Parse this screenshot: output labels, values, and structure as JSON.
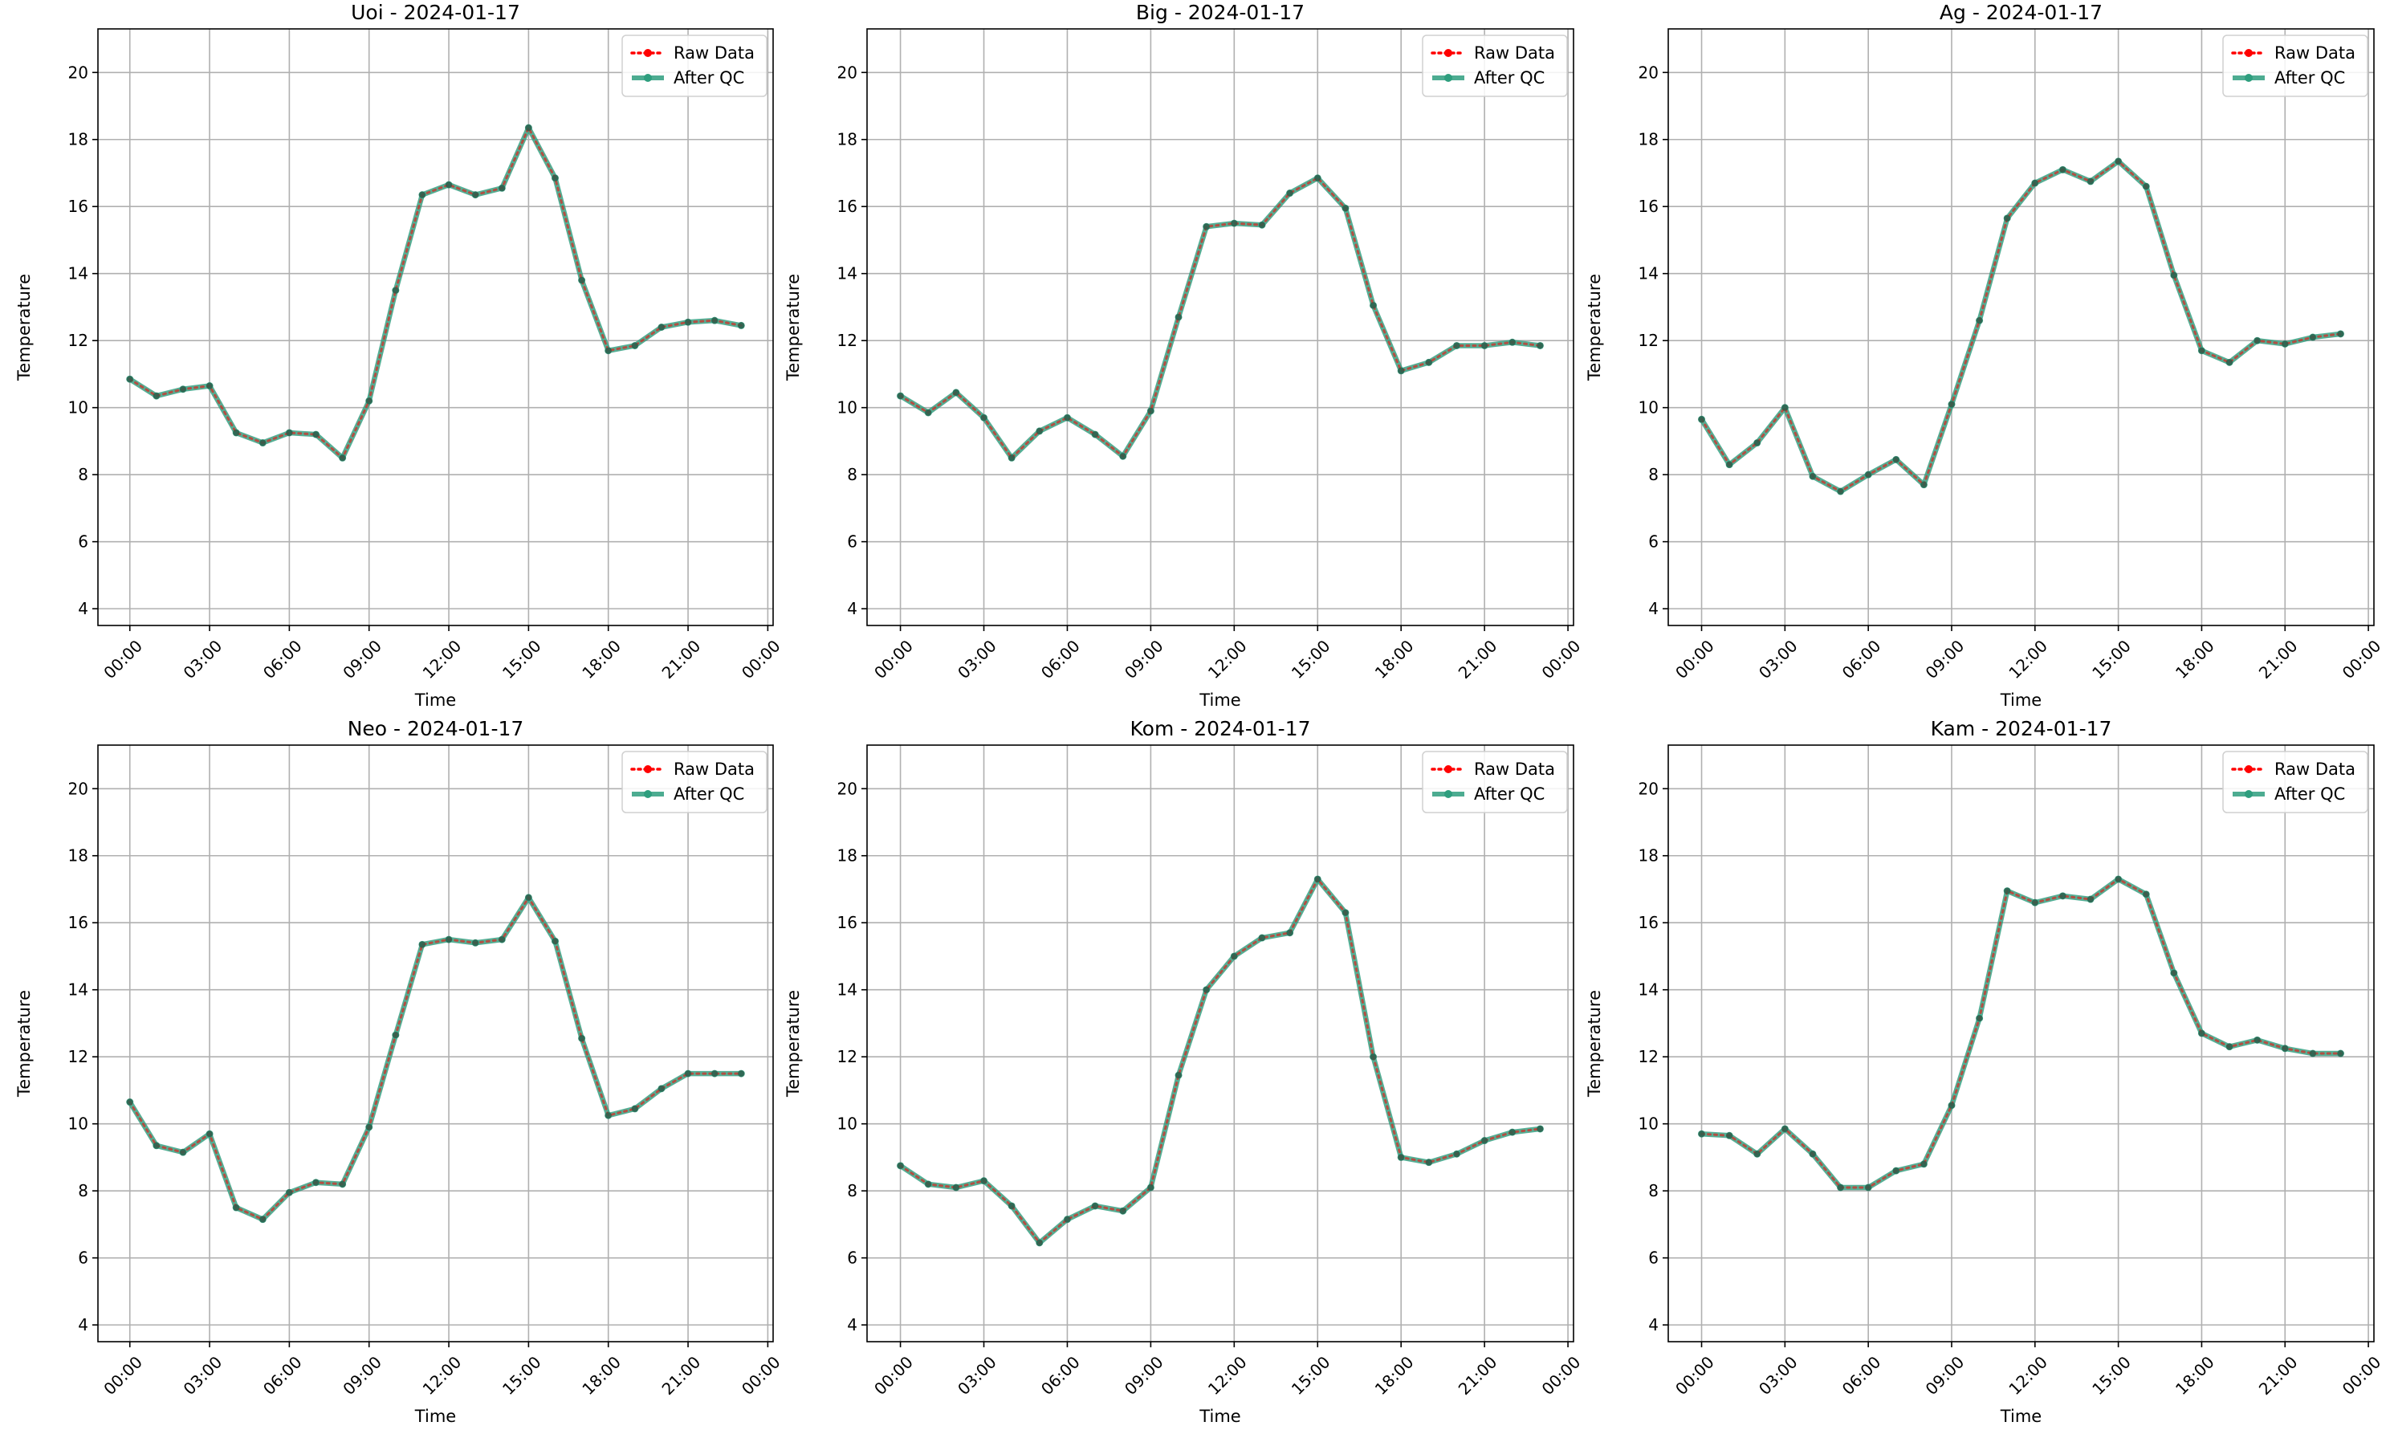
{
  "figure": {
    "raw_color": "#ff0000",
    "qc_color": "#2e9e7e",
    "grid_color": "#b0b0b0"
  },
  "chart_data": [
    {
      "type": "line",
      "title": "Uoi - 2024-01-17",
      "xlabel": "Time",
      "ylabel": "Temperature",
      "x_hours": [
        0,
        1,
        2,
        3,
        4,
        5,
        6,
        7,
        8,
        9,
        10,
        11,
        12,
        13,
        14,
        15,
        16,
        17,
        18,
        19,
        20,
        21,
        22,
        23
      ],
      "x_tick_labels": [
        "00:00",
        "03:00",
        "06:00",
        "09:00",
        "12:00",
        "15:00",
        "18:00",
        "21:00",
        "00:00"
      ],
      "x_tick_hours": [
        0,
        3,
        6,
        9,
        12,
        15,
        18,
        21,
        24
      ],
      "xlim": [
        -1.2,
        24.2
      ],
      "ylim": [
        3.5,
        21.3
      ],
      "y_ticks": [
        4,
        6,
        8,
        10,
        12,
        14,
        16,
        18,
        20
      ],
      "grid": true,
      "legend": "top-right",
      "series": [
        {
          "name": "Raw Data",
          "style": "dotted",
          "values": [
            10.85,
            10.35,
            10.55,
            10.65,
            9.25,
            8.95,
            9.25,
            9.2,
            8.5,
            10.2,
            13.5,
            16.35,
            16.65,
            16.35,
            16.55,
            18.35,
            16.85,
            13.8,
            11.7,
            11.85,
            12.4,
            12.55,
            12.6,
            12.45
          ]
        },
        {
          "name": "After QC",
          "style": "solid",
          "values": [
            10.85,
            10.35,
            10.55,
            10.65,
            9.25,
            8.95,
            9.25,
            9.2,
            8.5,
            10.2,
            13.5,
            16.35,
            16.65,
            16.35,
            16.55,
            18.35,
            16.85,
            13.8,
            11.7,
            11.85,
            12.4,
            12.55,
            12.6,
            12.45
          ]
        }
      ]
    },
    {
      "type": "line",
      "title": "Big - 2024-01-17",
      "xlabel": "Time",
      "ylabel": "Temperature",
      "x_hours": [
        0,
        1,
        2,
        3,
        4,
        5,
        6,
        7,
        8,
        9,
        10,
        11,
        12,
        13,
        14,
        15,
        16,
        17,
        18,
        19,
        20,
        21,
        22,
        23
      ],
      "x_tick_labels": [
        "00:00",
        "03:00",
        "06:00",
        "09:00",
        "12:00",
        "15:00",
        "18:00",
        "21:00",
        "00:00"
      ],
      "x_tick_hours": [
        0,
        3,
        6,
        9,
        12,
        15,
        18,
        21,
        24
      ],
      "xlim": [
        -1.2,
        24.2
      ],
      "ylim": [
        3.5,
        21.3
      ],
      "y_ticks": [
        4,
        6,
        8,
        10,
        12,
        14,
        16,
        18,
        20
      ],
      "grid": true,
      "legend": "top-right",
      "series": [
        {
          "name": "Raw Data",
          "style": "dotted",
          "values": [
            10.35,
            9.85,
            10.45,
            9.7,
            8.5,
            9.3,
            9.7,
            9.2,
            8.55,
            9.9,
            12.7,
            15.4,
            15.5,
            15.45,
            16.4,
            16.85,
            15.95,
            13.05,
            11.1,
            11.35,
            11.85,
            11.85,
            11.95,
            11.85
          ]
        },
        {
          "name": "After QC",
          "style": "solid",
          "values": [
            10.35,
            9.85,
            10.45,
            9.7,
            8.5,
            9.3,
            9.7,
            9.2,
            8.55,
            9.9,
            12.7,
            15.4,
            15.5,
            15.45,
            16.4,
            16.85,
            15.95,
            13.05,
            11.1,
            11.35,
            11.85,
            11.85,
            11.95,
            11.85
          ]
        }
      ]
    },
    {
      "type": "line",
      "title": "Ag - 2024-01-17",
      "xlabel": "Time",
      "ylabel": "Temperature",
      "x_hours": [
        0,
        1,
        2,
        3,
        4,
        5,
        6,
        7,
        8,
        9,
        10,
        11,
        12,
        13,
        14,
        15,
        16,
        17,
        18,
        19,
        20,
        21,
        22,
        23
      ],
      "x_tick_labels": [
        "00:00",
        "03:00",
        "06:00",
        "09:00",
        "12:00",
        "15:00",
        "18:00",
        "21:00",
        "00:00"
      ],
      "x_tick_hours": [
        0,
        3,
        6,
        9,
        12,
        15,
        18,
        21,
        24
      ],
      "xlim": [
        -1.2,
        24.2
      ],
      "ylim": [
        3.5,
        21.3
      ],
      "y_ticks": [
        4,
        6,
        8,
        10,
        12,
        14,
        16,
        18,
        20
      ],
      "grid": true,
      "legend": "top-right",
      "series": [
        {
          "name": "Raw Data",
          "style": "dotted",
          "values": [
            9.65,
            8.3,
            8.95,
            10.0,
            7.95,
            7.5,
            8.0,
            8.45,
            7.7,
            10.1,
            12.6,
            15.65,
            16.7,
            17.1,
            16.75,
            17.35,
            16.6,
            13.95,
            11.7,
            11.35,
            12.0,
            11.9,
            12.1,
            12.2
          ]
        },
        {
          "name": "After QC",
          "style": "solid",
          "values": [
            9.65,
            8.3,
            8.95,
            10.0,
            7.95,
            7.5,
            8.0,
            8.45,
            7.7,
            10.1,
            12.6,
            15.65,
            16.7,
            17.1,
            16.75,
            17.35,
            16.6,
            13.95,
            11.7,
            11.35,
            12.0,
            11.9,
            12.1,
            12.2
          ]
        }
      ]
    },
    {
      "type": "line",
      "title": "Neo - 2024-01-17",
      "xlabel": "Time",
      "ylabel": "Temperature",
      "x_hours": [
        0,
        1,
        2,
        3,
        4,
        5,
        6,
        7,
        8,
        9,
        10,
        11,
        12,
        13,
        14,
        15,
        16,
        17,
        18,
        19,
        20,
        21,
        22,
        23
      ],
      "x_tick_labels": [
        "00:00",
        "03:00",
        "06:00",
        "09:00",
        "12:00",
        "15:00",
        "18:00",
        "21:00",
        "00:00"
      ],
      "x_tick_hours": [
        0,
        3,
        6,
        9,
        12,
        15,
        18,
        21,
        24
      ],
      "xlim": [
        -1.2,
        24.2
      ],
      "ylim": [
        3.5,
        21.3
      ],
      "y_ticks": [
        4,
        6,
        8,
        10,
        12,
        14,
        16,
        18,
        20
      ],
      "grid": true,
      "legend": "top-right",
      "series": [
        {
          "name": "Raw Data",
          "style": "dotted",
          "values": [
            10.65,
            9.35,
            9.15,
            9.7,
            7.5,
            7.15,
            7.95,
            8.25,
            8.2,
            9.9,
            12.65,
            15.35,
            15.5,
            15.4,
            15.5,
            16.75,
            15.45,
            12.55,
            10.25,
            10.45,
            11.05,
            11.5,
            11.5,
            11.5
          ]
        },
        {
          "name": "After QC",
          "style": "solid",
          "values": [
            10.65,
            9.35,
            9.15,
            9.7,
            7.5,
            7.15,
            7.95,
            8.25,
            8.2,
            9.9,
            12.65,
            15.35,
            15.5,
            15.4,
            15.5,
            16.75,
            15.45,
            12.55,
            10.25,
            10.45,
            11.05,
            11.5,
            11.5,
            11.5
          ]
        }
      ]
    },
    {
      "type": "line",
      "title": "Kom - 2024-01-17",
      "xlabel": "Time",
      "ylabel": "Temperature",
      "x_hours": [
        0,
        1,
        2,
        3,
        4,
        5,
        6,
        7,
        8,
        9,
        10,
        11,
        12,
        13,
        14,
        15,
        16,
        17,
        18,
        19,
        20,
        21,
        22,
        23
      ],
      "x_tick_labels": [
        "00:00",
        "03:00",
        "06:00",
        "09:00",
        "12:00",
        "15:00",
        "18:00",
        "21:00",
        "00:00"
      ],
      "x_tick_hours": [
        0,
        3,
        6,
        9,
        12,
        15,
        18,
        21,
        24
      ],
      "xlim": [
        -1.2,
        24.2
      ],
      "ylim": [
        3.5,
        21.3
      ],
      "y_ticks": [
        4,
        6,
        8,
        10,
        12,
        14,
        16,
        18,
        20
      ],
      "grid": true,
      "legend": "top-right",
      "series": [
        {
          "name": "Raw Data",
          "style": "dotted",
          "values": [
            8.75,
            8.2,
            8.1,
            8.3,
            7.55,
            6.45,
            7.15,
            7.55,
            7.4,
            8.1,
            11.45,
            14.0,
            15.0,
            15.55,
            15.7,
            17.3,
            16.3,
            12.0,
            9.0,
            8.85,
            9.1,
            9.5,
            9.75,
            9.85
          ]
        },
        {
          "name": "After QC",
          "style": "solid",
          "values": [
            8.75,
            8.2,
            8.1,
            8.3,
            7.55,
            6.45,
            7.15,
            7.55,
            7.4,
            8.1,
            11.45,
            14.0,
            15.0,
            15.55,
            15.7,
            17.3,
            16.3,
            12.0,
            9.0,
            8.85,
            9.1,
            9.5,
            9.75,
            9.85
          ]
        }
      ]
    },
    {
      "type": "line",
      "title": "Kam - 2024-01-17",
      "xlabel": "Time",
      "ylabel": "Temperature",
      "x_hours": [
        0,
        1,
        2,
        3,
        4,
        5,
        6,
        7,
        8,
        9,
        10,
        11,
        12,
        13,
        14,
        15,
        16,
        17,
        18,
        19,
        20,
        21,
        22,
        23
      ],
      "x_tick_labels": [
        "00:00",
        "03:00",
        "06:00",
        "09:00",
        "12:00",
        "15:00",
        "18:00",
        "21:00",
        "00:00"
      ],
      "x_tick_hours": [
        0,
        3,
        6,
        9,
        12,
        15,
        18,
        21,
        24
      ],
      "xlim": [
        -1.2,
        24.2
      ],
      "ylim": [
        3.5,
        21.3
      ],
      "y_ticks": [
        4,
        6,
        8,
        10,
        12,
        14,
        16,
        18,
        20
      ],
      "grid": true,
      "legend": "top-right",
      "series": [
        {
          "name": "Raw Data",
          "style": "dotted",
          "values": [
            9.7,
            9.65,
            9.1,
            9.85,
            9.1,
            8.1,
            8.1,
            8.6,
            8.8,
            10.55,
            13.15,
            16.95,
            16.6,
            16.8,
            16.7,
            17.3,
            16.85,
            14.5,
            12.7,
            12.3,
            12.5,
            12.25,
            12.1,
            12.1
          ]
        },
        {
          "name": "After QC",
          "style": "solid",
          "values": [
            9.7,
            9.65,
            9.1,
            9.85,
            9.1,
            8.1,
            8.1,
            8.6,
            8.8,
            10.55,
            13.15,
            16.95,
            16.6,
            16.8,
            16.7,
            17.3,
            16.85,
            14.5,
            12.7,
            12.3,
            12.5,
            12.25,
            12.1,
            12.1
          ]
        }
      ]
    }
  ]
}
